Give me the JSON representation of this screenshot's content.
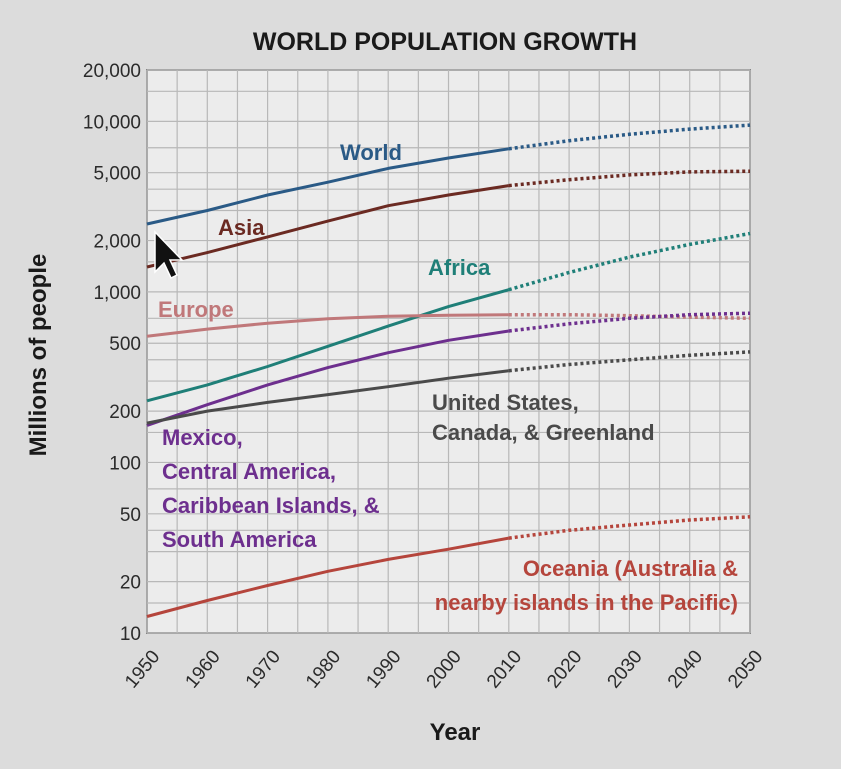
{
  "chart_data": {
    "type": "line",
    "title": "WORLD POPULATION GROWTH",
    "xlabel": "Year",
    "ylabel": "Millions of people",
    "yscale": "log",
    "ylim": [
      10,
      20000
    ],
    "xlim": [
      1950,
      2050
    ],
    "x_ticks": [
      "1950",
      "1960",
      "1970",
      "1980",
      "1990",
      "2000",
      "2010",
      "2020",
      "2030",
      "2040",
      "2050"
    ],
    "y_ticks": [
      {
        "value": 10,
        "label": "10"
      },
      {
        "value": 20,
        "label": "20"
      },
      {
        "value": 50,
        "label": "50"
      },
      {
        "value": 100,
        "label": "100"
      },
      {
        "value": 200,
        "label": "200"
      },
      {
        "value": 500,
        "label": "500"
      },
      {
        "value": 1000,
        "label": "1,000"
      },
      {
        "value": 2000,
        "label": "2,000"
      },
      {
        "value": 5000,
        "label": "5,000"
      },
      {
        "value": 10000,
        "label": "10,000"
      },
      {
        "value": 20000,
        "label": "20,000"
      }
    ],
    "projection_note": "dotted segments are projections",
    "series": [
      {
        "name": "World",
        "label_lines": [
          "World"
        ],
        "color": "#2a5a86",
        "points": [
          [
            1950,
            2500
          ],
          [
            1960,
            3000
          ],
          [
            1970,
            3700
          ],
          [
            1980,
            4400
          ],
          [
            1990,
            5300
          ],
          [
            2000,
            6100
          ],
          [
            2010,
            6900
          ]
        ],
        "projection": [
          [
            2010,
            6900
          ],
          [
            2020,
            7700
          ],
          [
            2030,
            8400
          ],
          [
            2040,
            9000
          ],
          [
            2050,
            9500
          ]
        ]
      },
      {
        "name": "Asia",
        "label_lines": [
          "Asia"
        ],
        "color": "#6b2a22",
        "points": [
          [
            1950,
            1400
          ],
          [
            1960,
            1700
          ],
          [
            1970,
            2100
          ],
          [
            1980,
            2600
          ],
          [
            1990,
            3200
          ],
          [
            2000,
            3700
          ],
          [
            2010,
            4200
          ]
        ],
        "projection": [
          [
            2010,
            4200
          ],
          [
            2020,
            4550
          ],
          [
            2030,
            4850
          ],
          [
            2040,
            5050
          ],
          [
            2050,
            5100
          ]
        ]
      },
      {
        "name": "Africa",
        "label_lines": [
          "Africa"
        ],
        "color": "#1f7f78",
        "points": [
          [
            1950,
            230
          ],
          [
            1960,
            285
          ],
          [
            1970,
            365
          ],
          [
            1980,
            480
          ],
          [
            1990,
            630
          ],
          [
            2000,
            820
          ],
          [
            2010,
            1030
          ]
        ],
        "projection": [
          [
            2010,
            1030
          ],
          [
            2020,
            1300
          ],
          [
            2030,
            1600
          ],
          [
            2040,
            1900
          ],
          [
            2050,
            2200
          ]
        ]
      },
      {
        "name": "Europe",
        "label_lines": [
          "Europe"
        ],
        "color": "#c0787a",
        "points": [
          [
            1950,
            550
          ],
          [
            1960,
            605
          ],
          [
            1970,
            655
          ],
          [
            1980,
            695
          ],
          [
            1990,
            720
          ],
          [
            2000,
            730
          ],
          [
            2010,
            735
          ]
        ],
        "projection": [
          [
            2010,
            735
          ],
          [
            2020,
            735
          ],
          [
            2030,
            725
          ],
          [
            2040,
            712
          ],
          [
            2050,
            700
          ]
        ]
      },
      {
        "name": "Mexico, Central America, Caribbean Islands, & South America",
        "label_lines": [
          "Mexico,",
          "Central America,",
          "Caribbean Islands, &",
          "South America"
        ],
        "color": "#6d2f8e",
        "points": [
          [
            1950,
            165
          ],
          [
            1960,
            218
          ],
          [
            1970,
            285
          ],
          [
            1980,
            360
          ],
          [
            1990,
            440
          ],
          [
            2000,
            520
          ],
          [
            2010,
            590
          ]
        ],
        "projection": [
          [
            2010,
            590
          ],
          [
            2020,
            650
          ],
          [
            2030,
            700
          ],
          [
            2040,
            735
          ],
          [
            2050,
            750
          ]
        ]
      },
      {
        "name": "United States, Canada, & Greenland",
        "label_lines": [
          "United States,",
          "Canada, & Greenland"
        ],
        "color": "#4a4a4a",
        "points": [
          [
            1950,
            170
          ],
          [
            1960,
            200
          ],
          [
            1970,
            225
          ],
          [
            1980,
            250
          ],
          [
            1990,
            278
          ],
          [
            2000,
            312
          ],
          [
            2010,
            345
          ]
        ],
        "projection": [
          [
            2010,
            345
          ],
          [
            2020,
            375
          ],
          [
            2030,
            400
          ],
          [
            2040,
            425
          ],
          [
            2050,
            445
          ]
        ]
      },
      {
        "name": "Oceania (Australia & nearby islands in the Pacific)",
        "label_lines": [
          "Oceania (Australia &",
          "nearby islands in the Pacific)"
        ],
        "color": "#b5453c",
        "points": [
          [
            1950,
            12.5
          ],
          [
            1960,
            15.5
          ],
          [
            1970,
            19
          ],
          [
            1980,
            23
          ],
          [
            1990,
            27
          ],
          [
            2000,
            31
          ],
          [
            2010,
            36
          ]
        ],
        "projection": [
          [
            2010,
            36
          ],
          [
            2020,
            40
          ],
          [
            2030,
            43
          ],
          [
            2040,
            46
          ],
          [
            2050,
            48
          ]
        ]
      }
    ]
  }
}
